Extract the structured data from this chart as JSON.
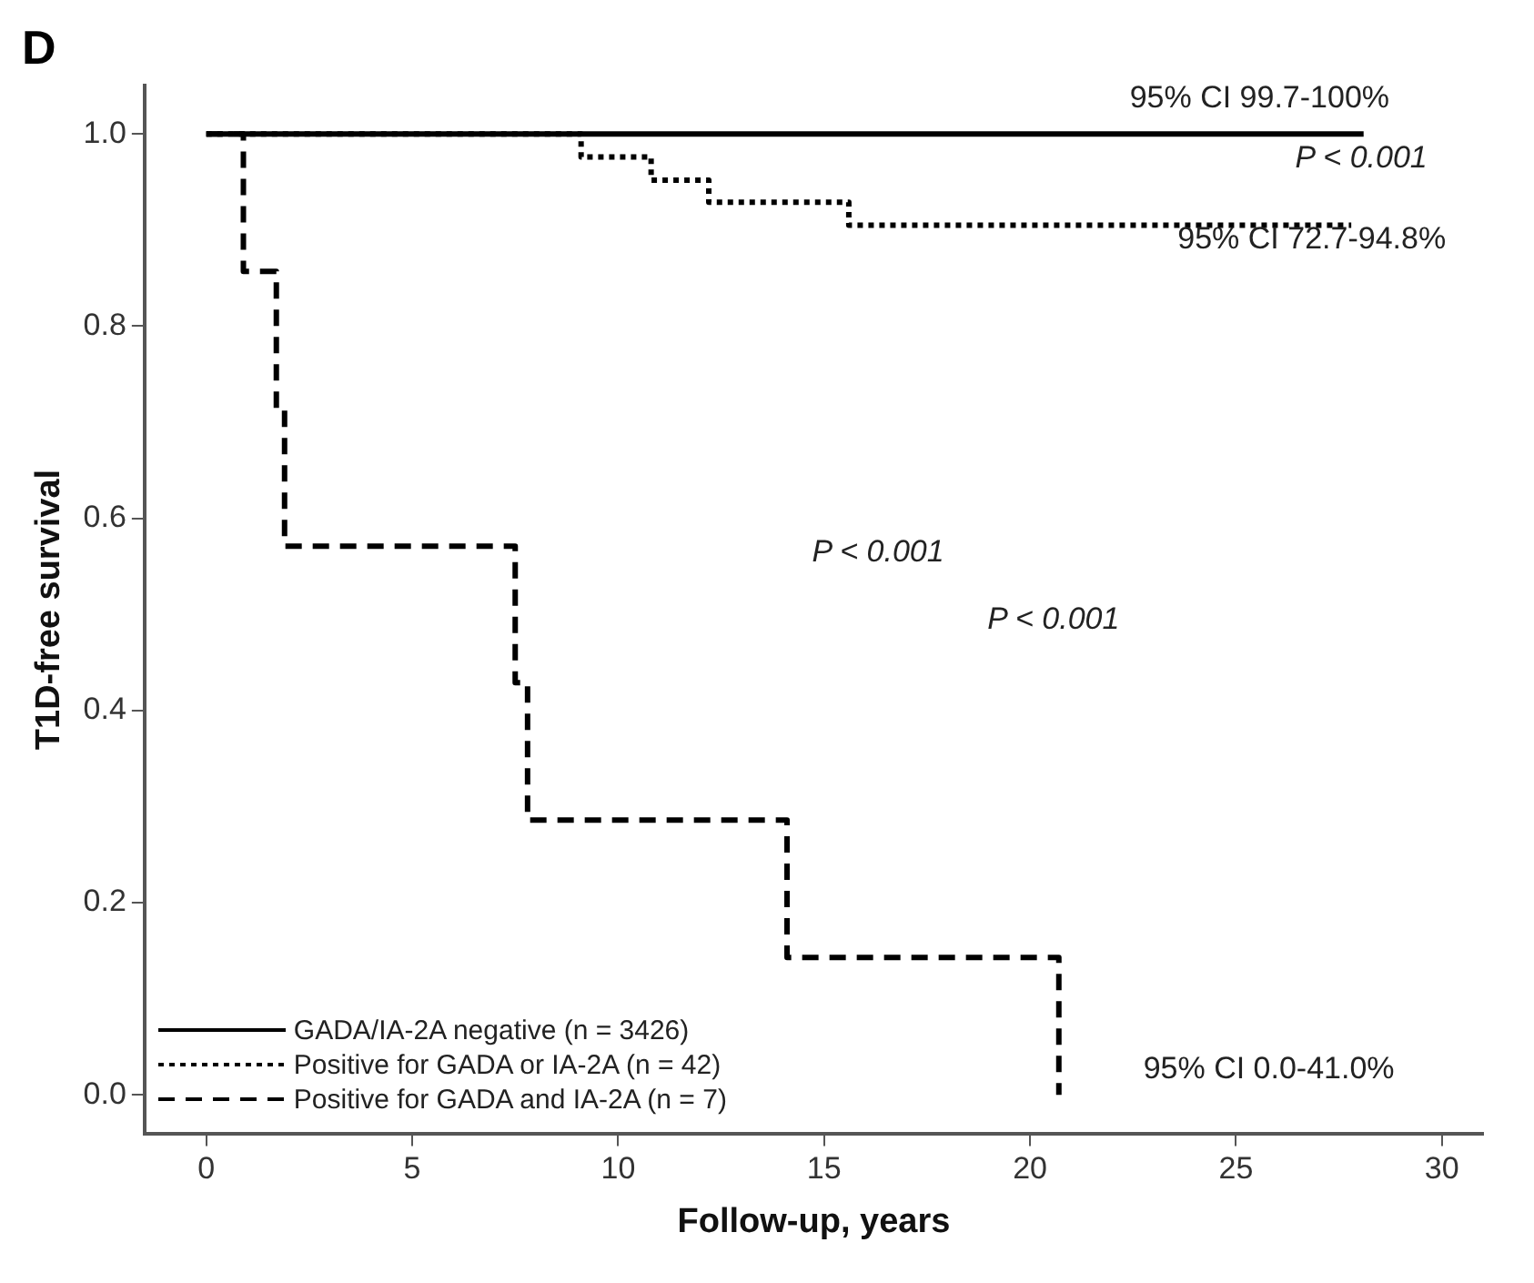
{
  "chart_data": {
    "type": "step",
    "title": "D",
    "xlabel": "Follow-up, years",
    "ylabel": "T1D-free survival",
    "series": [
      {
        "name": "GADA/IA-2A negative (n = 3426)",
        "color": "#000000",
        "line_style": "solid",
        "x": [
          0,
          28.1
        ],
        "values": [
          1.0,
          1.0
        ]
      },
      {
        "name": "Positive for GADA or IA-2A (n = 42)",
        "color": "#000000",
        "line_style": "dotted",
        "x": [
          0,
          9.1,
          10.8,
          12.2,
          15.6,
          27.8
        ],
        "values": [
          1.0,
          0.976,
          0.952,
          0.929,
          0.905,
          0.905
        ]
      },
      {
        "name": "Positive for GADA and IA-2A (n = 7)",
        "color": "#000000",
        "line_style": "dashed",
        "x": [
          0,
          0.9,
          1.7,
          1.9,
          7.5,
          7.8,
          14.1,
          20.7
        ],
        "values": [
          1.0,
          0.857,
          0.714,
          0.571,
          0.429,
          0.286,
          0.143,
          0.0
        ]
      }
    ],
    "xlim": [
      -1.5,
      31
    ],
    "xticks": [
      0,
      5,
      10,
      15,
      20,
      25,
      30
    ],
    "ylim": [
      -0.04,
      1.05
    ],
    "yticks": [
      {
        "value": 0,
        "label": "0.0"
      },
      {
        "value": 0.2,
        "label": "0.2"
      },
      {
        "value": 0.4,
        "label": "0.4"
      },
      {
        "value": 0.6,
        "label": "0.6"
      },
      {
        "value": 0.8,
        "label": "0.8"
      },
      {
        "value": 1,
        "label": "1.0"
      }
    ],
    "annotations": [
      "95% CI 99.7-100%",
      "P < 0.001",
      "95% CI 72.7-94.8%",
      "P < 0.001",
      "P < 0.001",
      "95% CI 0.0-41.0%"
    ],
    "grid": false,
    "legend": "bottom left",
    "marker": "none"
  }
}
